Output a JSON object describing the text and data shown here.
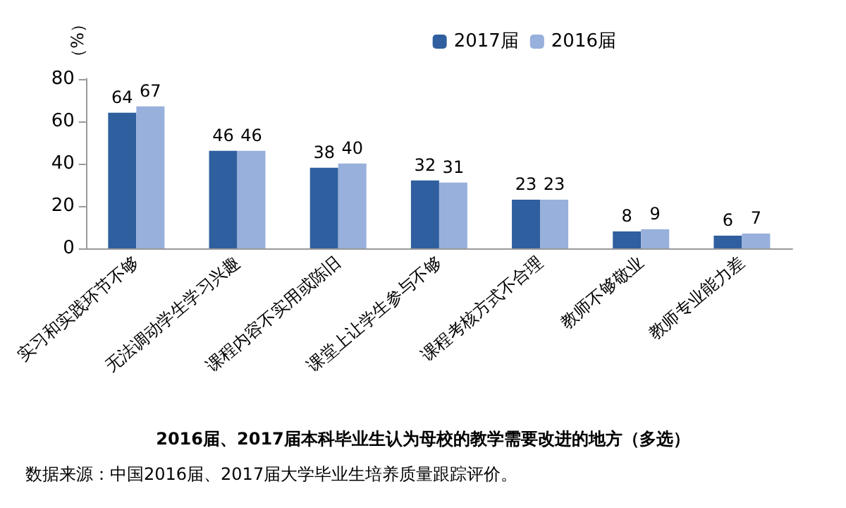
{
  "chart_data": {
    "type": "bar",
    "title": "2016届、2017届本科毕业生认为母校的教学需要改进的地方（多选）",
    "ylabel": "（%）",
    "annotations": [
      "数据来源：中国2016届、2017届大学毕业生培养质量跟踪评价。"
    ],
    "categories": [
      "实习和实践环节不够",
      "无法调动学生学习兴趣",
      "课程内容不实用或陈旧",
      "课堂上让学生参与不够",
      "课程考核方式不合理",
      "教师不够敬业",
      "教师专业能力差"
    ],
    "series": [
      {
        "name": "2017届",
        "color": "#2f5f9e",
        "values": [
          64,
          46,
          38,
          32,
          23,
          8,
          6
        ]
      },
      {
        "name": "2016届",
        "color": "#98b0dc",
        "values": [
          67,
          46,
          40,
          31,
          23,
          9,
          7
        ]
      }
    ],
    "ylim": [
      0,
      80
    ],
    "yticks": [
      0,
      20,
      40,
      60,
      80
    ],
    "grid": false,
    "legend": "top right",
    "data_labels": true
  }
}
